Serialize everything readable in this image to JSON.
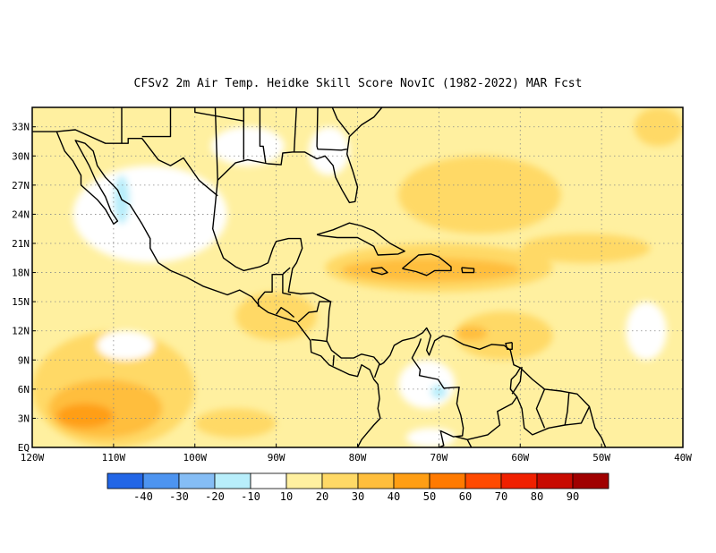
{
  "title": "CFSv2  2m Air Temp. Heidke Skill Score NovIC (1982-2022) MAR Fcst",
  "map": {
    "lon_range": [
      -120,
      -40
    ],
    "lat_range": [
      0,
      35
    ],
    "lon_ticks": [
      {
        "value": -120,
        "label": "120W"
      },
      {
        "value": -110,
        "label": "110W"
      },
      {
        "value": -100,
        "label": "100W"
      },
      {
        "value": -90,
        "label": "90W"
      },
      {
        "value": -80,
        "label": "80W"
      },
      {
        "value": -70,
        "label": "70W"
      },
      {
        "value": -60,
        "label": "60W"
      },
      {
        "value": -50,
        "label": "50W"
      },
      {
        "value": -40,
        "label": "40W"
      }
    ],
    "lat_ticks": [
      {
        "value": 0,
        "label": "EQ"
      },
      {
        "value": 3,
        "label": "3N"
      },
      {
        "value": 6,
        "label": "6N"
      },
      {
        "value": 9,
        "label": "9N"
      },
      {
        "value": 12,
        "label": "12N"
      },
      {
        "value": 15,
        "label": "15N"
      },
      {
        "value": 18,
        "label": "18N"
      },
      {
        "value": 21,
        "label": "21N"
      },
      {
        "value": 24,
        "label": "24N"
      },
      {
        "value": 27,
        "label": "27N"
      },
      {
        "value": 30,
        "label": "30N"
      },
      {
        "value": 33,
        "label": "33N"
      }
    ],
    "grid": true,
    "background_color": "#fff0a0"
  },
  "colorbar": {
    "colors": [
      "#2266e6",
      "#4d94f0",
      "#85bdf5",
      "#b8eefb",
      "#ffffff",
      "#fff0a0",
      "#ffd966",
      "#ffbe3c",
      "#ff9e14",
      "#ff7a00",
      "#ff4a00",
      "#f02000",
      "#c80a00",
      "#a00000"
    ],
    "labels": [
      "-40",
      "-30",
      "-20",
      "-10",
      "10",
      "20",
      "30",
      "40",
      "50",
      "60",
      "70",
      "80",
      "90"
    ]
  },
  "field_regions": [
    {
      "level": "30",
      "color": "#ffd966",
      "lon": [
        -120,
        -100
      ],
      "lat": [
        0,
        12
      ]
    },
    {
      "level": "40",
      "color": "#ffbe3c",
      "lon": [
        -118,
        -104
      ],
      "lat": [
        1,
        7
      ]
    },
    {
      "level": "50",
      "color": "#ff9e14",
      "lon": [
        -117,
        -110
      ],
      "lat": [
        2,
        4.5
      ]
    },
    {
      "level": "30",
      "color": "#ffd966",
      "lon": [
        -84,
        -56
      ],
      "lat": [
        16,
        21
      ]
    },
    {
      "level": "40",
      "color": "#ffbe3c",
      "lon": [
        -82,
        -60
      ],
      "lat": [
        17,
        19.5
      ]
    },
    {
      "level": "30",
      "color": "#ffd966",
      "lon": [
        -75,
        -55
      ],
      "lat": [
        22,
        30
      ]
    },
    {
      "level": "30",
      "color": "#ffd966",
      "lon": [
        -60,
        -44
      ],
      "lat": [
        19,
        22
      ]
    },
    {
      "level": "30",
      "color": "#ffd966",
      "lon": [
        -46,
        -40
      ],
      "lat": [
        31,
        35
      ]
    },
    {
      "level": "30",
      "color": "#ffd966",
      "lon": [
        -68,
        -56
      ],
      "lat": [
        9,
        14
      ]
    },
    {
      "level": "40",
      "color": "#ffbe3c",
      "lon": [
        -68,
        -64
      ],
      "lat": [
        11,
        12.5
      ]
    },
    {
      "level": "30",
      "color": "#ffd966",
      "lon": [
        -95,
        -85
      ],
      "lat": [
        11,
        16
      ]
    },
    {
      "level": "30",
      "color": "#ffd966",
      "lon": [
        -100,
        -90
      ],
      "lat": [
        1,
        4
      ]
    },
    {
      "level": "10",
      "color": "#ffffff",
      "lon": [
        -115,
        -96
      ],
      "lat": [
        19,
        29
      ]
    },
    {
      "level": "10",
      "color": "#ffffff",
      "lon": [
        -98,
        -89
      ],
      "lat": [
        29,
        33
      ]
    },
    {
      "level": "10",
      "color": "#ffffff",
      "lon": [
        -75,
        -68
      ],
      "lat": [
        4,
        9
      ]
    },
    {
      "level": "10",
      "color": "#ffffff",
      "lon": [
        -74,
        -68
      ],
      "lat": [
        0,
        2
      ]
    },
    {
      "level": "10",
      "color": "#ffffff",
      "lon": [
        -47,
        -42
      ],
      "lat": [
        9,
        15
      ]
    },
    {
      "level": "10",
      "color": "#ffffff",
      "lon": [
        -86,
        -81
      ],
      "lat": [
        28,
        33
      ]
    },
    {
      "level": "10",
      "color": "#ffffff",
      "lon": [
        -112,
        -105
      ],
      "lat": [
        9,
        12
      ]
    },
    {
      "level": "-10",
      "color": "#b8eefb",
      "lon": [
        -110,
        -108
      ],
      "lat": [
        23,
        28
      ]
    },
    {
      "level": "-10",
      "color": "#b8eefb",
      "lon": [
        -71,
        -69
      ],
      "lat": [
        5,
        6.5
      ]
    }
  ],
  "coastlines": [
    [
      [
        -117,
        32.5
      ],
      [
        -116,
        30.5
      ],
      [
        -115,
        29.5
      ],
      [
        -114,
        28
      ],
      [
        -114,
        27
      ],
      [
        -112,
        25.5
      ],
      [
        -111,
        24.5
      ],
      [
        -110,
        23
      ],
      [
        -109.5,
        23.3
      ],
      [
        -110.3,
        24.3
      ],
      [
        -111,
        25.8
      ],
      [
        -112.2,
        27.5
      ],
      [
        -113,
        29
      ],
      [
        -114.7,
        31.6
      ],
      [
        -113.5,
        31.3
      ],
      [
        -112.5,
        30.5
      ],
      [
        -112,
        29
      ],
      [
        -111,
        27.8
      ],
      [
        -109.5,
        26.5
      ],
      [
        -109,
        25.5
      ],
      [
        -108,
        25
      ],
      [
        -106.5,
        23
      ],
      [
        -105.5,
        21.5
      ],
      [
        -105.5,
        20.5
      ],
      [
        -104.5,
        19
      ],
      [
        -103,
        18.2
      ],
      [
        -101,
        17.5
      ],
      [
        -99,
        16.6
      ],
      [
        -96,
        15.7
      ],
      [
        -94.5,
        16.2
      ],
      [
        -93,
        15.5
      ],
      [
        -92,
        14.5
      ],
      [
        -91,
        13.9
      ],
      [
        -89,
        13.3
      ],
      [
        -87.5,
        12.9
      ],
      [
        -86.5,
        11.8
      ],
      [
        -85.8,
        11
      ],
      [
        -85.7,
        9.8
      ],
      [
        -84.5,
        9.4
      ],
      [
        -83.5,
        8.5
      ],
      [
        -82.5,
        8.1
      ],
      [
        -81,
        7.5
      ],
      [
        -80,
        7.3
      ],
      [
        -79.5,
        8.5
      ],
      [
        -78.5,
        8
      ],
      [
        -78,
        7
      ],
      [
        -77.5,
        6.5
      ],
      [
        -77.3,
        5
      ],
      [
        -77.5,
        4
      ],
      [
        -77.2,
        3
      ],
      [
        -78,
        2.3
      ],
      [
        -78.8,
        1.5
      ],
      [
        -79.5,
        0.8
      ],
      [
        -80,
        0
      ]
    ],
    [
      [
        -97.5,
        35
      ],
      [
        -97.2,
        27.5
      ],
      [
        -97.5,
        25
      ],
      [
        -97.8,
        22.5
      ],
      [
        -97.2,
        21
      ],
      [
        -96.5,
        19.5
      ],
      [
        -95,
        18.6
      ],
      [
        -94,
        18.2
      ],
      [
        -92,
        18.6
      ],
      [
        -91,
        19
      ],
      [
        -90.4,
        20.5
      ],
      [
        -90,
        21.2
      ],
      [
        -88.5,
        21.5
      ],
      [
        -87,
        21.5
      ],
      [
        -86.8,
        20.5
      ],
      [
        -87.5,
        19
      ],
      [
        -88,
        18.4
      ],
      [
        -88.3,
        17
      ],
      [
        -88.5,
        16
      ],
      [
        -87,
        15.8
      ],
      [
        -85.5,
        15.9
      ],
      [
        -84,
        15.3
      ],
      [
        -83.3,
        15
      ],
      [
        -83.5,
        14
      ],
      [
        -83.6,
        12.5
      ],
      [
        -83.8,
        11
      ],
      [
        -83.2,
        10
      ],
      [
        -82,
        9.2
      ],
      [
        -80.5,
        9.2
      ],
      [
        -79.5,
        9.6
      ],
      [
        -78,
        9.3
      ],
      [
        -77.2,
        8.5
      ],
      [
        -76.8,
        8.7
      ],
      [
        -76,
        9.5
      ],
      [
        -75.5,
        10.5
      ],
      [
        -74.5,
        11
      ],
      [
        -73,
        11.3
      ],
      [
        -72,
        11.8
      ],
      [
        -71.5,
        12.3
      ],
      [
        -71,
        11.5
      ],
      [
        -71.5,
        10
      ],
      [
        -71.2,
        9.5
      ],
      [
        -70.5,
        11
      ],
      [
        -69.5,
        11.5
      ],
      [
        -68.5,
        11.3
      ],
      [
        -67,
        10.6
      ],
      [
        -65,
        10.1
      ],
      [
        -63.5,
        10.6
      ],
      [
        -62,
        10.5
      ],
      [
        -61.2,
        10
      ],
      [
        -60.8,
        8.5
      ],
      [
        -60,
        8.2
      ],
      [
        -58.5,
        7
      ],
      [
        -57,
        6
      ],
      [
        -55,
        5.8
      ],
      [
        -53,
        5.5
      ],
      [
        -51.5,
        4.2
      ],
      [
        -50.8,
        2
      ],
      [
        -50,
        1
      ],
      [
        -49.5,
        0
      ]
    ],
    [
      [
        -97.2,
        27.5
      ],
      [
        -95,
        29.3
      ],
      [
        -93.5,
        29.6
      ],
      [
        -91,
        29.2
      ],
      [
        -89.4,
        29.1
      ],
      [
        -89.2,
        30.3
      ],
      [
        -88,
        30.4
      ],
      [
        -86.5,
        30.4
      ],
      [
        -85,
        29.7
      ],
      [
        -84,
        30
      ],
      [
        -83,
        29
      ],
      [
        -82.7,
        27.8
      ],
      [
        -81.9,
        26.5
      ],
      [
        -81,
        25.2
      ],
      [
        -80.3,
        25.3
      ],
      [
        -80,
        26.8
      ],
      [
        -80.6,
        28.5
      ],
      [
        -81.3,
        30.2
      ],
      [
        -81,
        32
      ],
      [
        -79.5,
        33.2
      ],
      [
        -78,
        34
      ],
      [
        -77,
        35
      ]
    ],
    [
      [
        -85,
        21.9
      ],
      [
        -83,
        22.4
      ],
      [
        -81,
        23.1
      ],
      [
        -79.5,
        22.8
      ],
      [
        -78,
        22.3
      ],
      [
        -76,
        21
      ],
      [
        -74.2,
        20.2
      ],
      [
        -75,
        19.9
      ],
      [
        -77.5,
        19.8
      ],
      [
        -78,
        20.7
      ],
      [
        -80,
        21.6
      ],
      [
        -82.5,
        21.6
      ],
      [
        -84.5,
        21.8
      ],
      [
        -85,
        21.9
      ]
    ],
    [
      [
        -74.5,
        18.4
      ],
      [
        -72.5,
        19.8
      ],
      [
        -71,
        19.9
      ],
      [
        -70,
        19.6
      ],
      [
        -68.5,
        18.6
      ],
      [
        -68.5,
        18.2
      ],
      [
        -70.5,
        18.2
      ],
      [
        -71.5,
        17.7
      ],
      [
        -72.8,
        18.1
      ],
      [
        -74.5,
        18.4
      ]
    ],
    [
      [
        -78.3,
        18.4
      ],
      [
        -77,
        18.5
      ],
      [
        -76.3,
        18
      ],
      [
        -77,
        17.8
      ],
      [
        -78.2,
        18.1
      ],
      [
        -78.3,
        18.4
      ]
    ],
    [
      [
        -67.2,
        18.5
      ],
      [
        -65.7,
        18.4
      ],
      [
        -65.7,
        18
      ],
      [
        -67.1,
        18
      ],
      [
        -67.2,
        18.5
      ]
    ],
    [
      [
        -92,
        35
      ],
      [
        -92,
        31
      ],
      [
        -91.6,
        31
      ],
      [
        -91.3,
        29.3
      ]
    ],
    [
      [
        -87.5,
        35
      ],
      [
        -87.8,
        30.4
      ]
    ],
    [
      [
        -84.9,
        35
      ],
      [
        -85,
        31
      ],
      [
        -84.9,
        30.7
      ],
      [
        -82,
        30.6
      ],
      [
        -81.3,
        30.7
      ]
    ],
    [
      [
        -81,
        32.2
      ],
      [
        -82.5,
        33.8
      ],
      [
        -83.1,
        35
      ]
    ],
    [
      [
        -120,
        32.5
      ],
      [
        -117,
        32.5
      ],
      [
        -114.7,
        32.7
      ],
      [
        -111,
        31.3
      ],
      [
        -108.2,
        31.3
      ],
      [
        -108.2,
        31.8
      ],
      [
        -106.5,
        31.8
      ],
      [
        -104.5,
        29.6
      ],
      [
        -103,
        29
      ],
      [
        -101.4,
        29.8
      ],
      [
        -99.5,
        27.5
      ],
      [
        -97.2,
        25.9
      ]
    ],
    [
      [
        -103,
        35
      ],
      [
        -103,
        32
      ],
      [
        -106.5,
        32
      ]
    ],
    [
      [
        -109,
        35
      ],
      [
        -109,
        31.3
      ]
    ],
    [
      [
        -100,
        35
      ],
      [
        -100,
        34.5
      ],
      [
        -94,
        33.6
      ],
      [
        -94,
        35
      ]
    ],
    [
      [
        -94,
        33.6
      ],
      [
        -94,
        29.6
      ]
    ],
    [
      [
        -92.2,
        14.5
      ],
      [
        -92.2,
        15.2
      ],
      [
        -91.4,
        16
      ],
      [
        -90.5,
        16
      ],
      [
        -90.5,
        17.8
      ],
      [
        -89.2,
        17.8
      ],
      [
        -89.1,
        17.9
      ],
      [
        -88.3,
        18.5
      ]
    ],
    [
      [
        -89.2,
        17.8
      ],
      [
        -89.2,
        15.9
      ],
      [
        -88.2,
        15.7
      ]
    ],
    [
      [
        -90,
        13.7
      ],
      [
        -89.4,
        14.4
      ],
      [
        -88.5,
        13.9
      ],
      [
        -87.8,
        13.4
      ]
    ],
    [
      [
        -87.3,
        12.9
      ],
      [
        -86,
        13.9
      ],
      [
        -85,
        14
      ],
      [
        -84.7,
        15
      ],
      [
        -83.2,
        15
      ]
    ],
    [
      [
        -85.7,
        11.1
      ],
      [
        -84.5,
        11
      ],
      [
        -83.7,
        10.9
      ]
    ],
    [
      [
        -83,
        8.4
      ],
      [
        -82.9,
        9.5
      ]
    ],
    [
      [
        -77.9,
        7.2
      ],
      [
        -77.3,
        8.6
      ]
    ],
    [
      [
        -72.2,
        11.2
      ],
      [
        -72.5,
        10.5
      ],
      [
        -73.3,
        9.2
      ],
      [
        -72.3,
        8
      ],
      [
        -72.4,
        7.4
      ],
      [
        -70.1,
        7
      ],
      [
        -69.4,
        6.1
      ],
      [
        -67.5,
        6.2
      ],
      [
        -67.8,
        4.5
      ],
      [
        -67.3,
        3.3
      ],
      [
        -67,
        2
      ],
      [
        -67.1,
        1.2
      ],
      [
        -68.2,
        1.1
      ],
      [
        -69.8,
        1.7
      ],
      [
        -69.4,
        0.2
      ],
      [
        -70,
        0
      ]
    ],
    [
      [
        -67.9,
        1.1
      ],
      [
        -66.5,
        0.8
      ],
      [
        -64,
        1.3
      ],
      [
        -62.5,
        2.3
      ],
      [
        -62.8,
        3.7
      ],
      [
        -61,
        4.5
      ],
      [
        -60.4,
        5.2
      ],
      [
        -61.2,
        6
      ],
      [
        -61.1,
        7
      ],
      [
        -60.5,
        7.5
      ],
      [
        -60,
        8.2
      ]
    ],
    [
      [
        -60.4,
        5.2
      ],
      [
        -59.8,
        4
      ],
      [
        -59.5,
        2
      ],
      [
        -58.5,
        1.3
      ],
      [
        -56.5,
        2
      ],
      [
        -54.5,
        2.3
      ],
      [
        -52.5,
        2.5
      ],
      [
        -51.5,
        4.2
      ]
    ],
    [
      [
        -59.8,
        8.3
      ],
      [
        -60,
        6.8
      ],
      [
        -61,
        5.5
      ]
    ],
    [
      [
        -57,
        6
      ],
      [
        -58,
        4
      ],
      [
        -57,
        2
      ]
    ],
    [
      [
        -54,
        5.7
      ],
      [
        -54.2,
        3.7
      ],
      [
        -54.5,
        2.3
      ]
    ],
    [
      [
        -66.5,
        0.8
      ],
      [
        -66,
        0
      ]
    ],
    [
      [
        -61,
        10.8
      ],
      [
        -61.8,
        10.7
      ],
      [
        -61.6,
        10.1
      ],
      [
        -61,
        10.1
      ],
      [
        -61,
        10.8
      ]
    ]
  ]
}
